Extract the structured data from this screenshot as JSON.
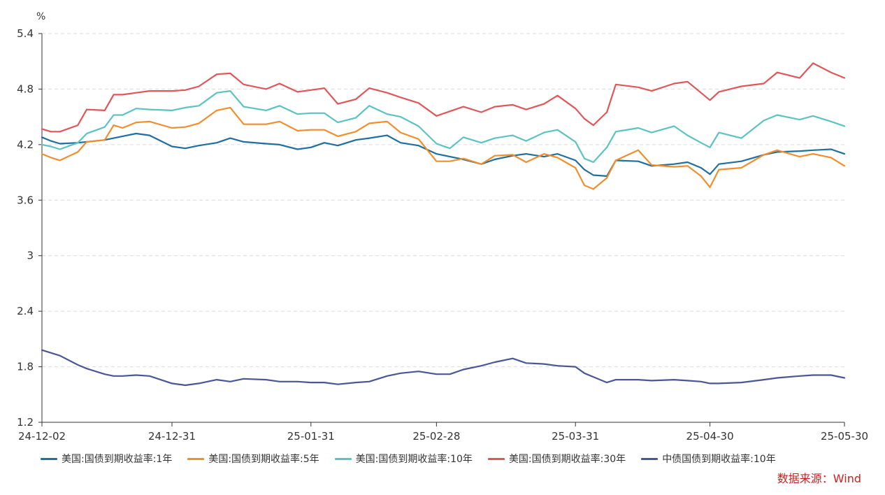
{
  "chart_data": {
    "type": "line",
    "yunit": "%",
    "ylim": [
      1.2,
      5.4
    ],
    "yticks": [
      "1.2",
      "1.8",
      "2.4",
      "3",
      "3.6",
      "4.2",
      "4.8",
      "5.4"
    ],
    "xticks": [
      "24-12-02",
      "24-12-31",
      "25-01-31",
      "25-02-28",
      "25-03-31",
      "25-04-30",
      "25-05-30"
    ],
    "grid": "horizontal-dashed",
    "legend_position": "bottom",
    "series": [
      {
        "name": "美国:国债到期收益率:1年",
        "color": "#1f6f9f",
        "points": [
          [
            "24-12-02",
            4.28
          ],
          [
            "24-12-04",
            4.24
          ],
          [
            "24-12-06",
            4.21
          ],
          [
            "24-12-10",
            4.22
          ],
          [
            "24-12-12",
            4.23
          ],
          [
            "24-12-16",
            4.25
          ],
          [
            "24-12-18",
            4.27
          ],
          [
            "24-12-20",
            4.29
          ],
          [
            "24-12-23",
            4.32
          ],
          [
            "24-12-26",
            4.3
          ],
          [
            "24-12-31",
            4.18
          ],
          [
            "25-01-03",
            4.16
          ],
          [
            "25-01-06",
            4.19
          ],
          [
            "25-01-10",
            4.22
          ],
          [
            "25-01-13",
            4.27
          ],
          [
            "25-01-16",
            4.23
          ],
          [
            "25-01-21",
            4.21
          ],
          [
            "25-01-24",
            4.2
          ],
          [
            "25-01-28",
            4.15
          ],
          [
            "25-01-31",
            4.17
          ],
          [
            "25-02-03",
            4.22
          ],
          [
            "25-02-06",
            4.19
          ],
          [
            "25-02-10",
            4.25
          ],
          [
            "25-02-13",
            4.27
          ],
          [
            "25-02-17",
            4.3
          ],
          [
            "25-02-20",
            4.22
          ],
          [
            "25-02-24",
            4.19
          ],
          [
            "25-02-28",
            4.1
          ],
          [
            "25-03-03",
            4.07
          ],
          [
            "25-03-06",
            4.04
          ],
          [
            "25-03-10",
            3.99
          ],
          [
            "25-03-13",
            4.04
          ],
          [
            "25-03-17",
            4.08
          ],
          [
            "25-03-20",
            4.1
          ],
          [
            "25-03-24",
            4.07
          ],
          [
            "25-03-27",
            4.1
          ],
          [
            "25-03-31",
            4.03
          ],
          [
            "25-04-02",
            3.93
          ],
          [
            "25-04-04",
            3.87
          ],
          [
            "25-04-07",
            3.86
          ],
          [
            "25-04-09",
            4.03
          ],
          [
            "25-04-14",
            4.02
          ],
          [
            "25-04-17",
            3.97
          ],
          [
            "25-04-22",
            3.99
          ],
          [
            "25-04-25",
            4.01
          ],
          [
            "25-04-28",
            3.95
          ],
          [
            "25-04-30",
            3.88
          ],
          [
            "25-05-02",
            3.99
          ],
          [
            "25-05-07",
            4.02
          ],
          [
            "25-05-12",
            4.09
          ],
          [
            "25-05-15",
            4.12
          ],
          [
            "25-05-20",
            4.13
          ],
          [
            "25-05-23",
            4.14
          ],
          [
            "25-05-27",
            4.15
          ],
          [
            "25-05-30",
            4.1
          ]
        ]
      },
      {
        "name": "美国:国债到期收益率:5年",
        "color": "#f28e2b",
        "points": [
          [
            "24-12-02",
            4.1
          ],
          [
            "24-12-04",
            4.06
          ],
          [
            "24-12-06",
            4.03
          ],
          [
            "24-12-10",
            4.12
          ],
          [
            "24-12-12",
            4.23
          ],
          [
            "24-12-16",
            4.25
          ],
          [
            "24-12-18",
            4.41
          ],
          [
            "24-12-20",
            4.38
          ],
          [
            "24-12-23",
            4.44
          ],
          [
            "24-12-26",
            4.45
          ],
          [
            "24-12-31",
            4.38
          ],
          [
            "25-01-03",
            4.39
          ],
          [
            "25-01-06",
            4.43
          ],
          [
            "25-01-10",
            4.57
          ],
          [
            "25-01-13",
            4.6
          ],
          [
            "25-01-16",
            4.42
          ],
          [
            "25-01-21",
            4.42
          ],
          [
            "25-01-24",
            4.45
          ],
          [
            "25-01-28",
            4.35
          ],
          [
            "25-01-31",
            4.36
          ],
          [
            "25-02-03",
            4.36
          ],
          [
            "25-02-06",
            4.29
          ],
          [
            "25-02-10",
            4.34
          ],
          [
            "25-02-13",
            4.43
          ],
          [
            "25-02-17",
            4.45
          ],
          [
            "25-02-20",
            4.33
          ],
          [
            "25-02-24",
            4.26
          ],
          [
            "25-02-28",
            4.02
          ],
          [
            "25-03-03",
            4.02
          ],
          [
            "25-03-06",
            4.05
          ],
          [
            "25-03-10",
            3.99
          ],
          [
            "25-03-13",
            4.08
          ],
          [
            "25-03-17",
            4.09
          ],
          [
            "25-03-20",
            4.01
          ],
          [
            "25-03-24",
            4.1
          ],
          [
            "25-03-27",
            4.06
          ],
          [
            "25-03-31",
            3.95
          ],
          [
            "25-04-02",
            3.76
          ],
          [
            "25-04-04",
            3.72
          ],
          [
            "25-04-07",
            3.84
          ],
          [
            "25-04-09",
            4.03
          ],
          [
            "25-04-14",
            4.14
          ],
          [
            "25-04-17",
            3.98
          ],
          [
            "25-04-22",
            3.96
          ],
          [
            "25-04-25",
            3.97
          ],
          [
            "25-04-28",
            3.86
          ],
          [
            "25-04-30",
            3.74
          ],
          [
            "25-05-02",
            3.93
          ],
          [
            "25-05-07",
            3.95
          ],
          [
            "25-05-12",
            4.09
          ],
          [
            "25-05-15",
            4.14
          ],
          [
            "25-05-20",
            4.07
          ],
          [
            "25-05-23",
            4.1
          ],
          [
            "25-05-27",
            4.06
          ],
          [
            "25-05-30",
            3.97
          ]
        ]
      },
      {
        "name": "美国:国债到期收益率:10年",
        "color": "#5cc3c3",
        "points": [
          [
            "24-12-02",
            4.2
          ],
          [
            "24-12-04",
            4.18
          ],
          [
            "24-12-06",
            4.15
          ],
          [
            "24-12-10",
            4.22
          ],
          [
            "24-12-12",
            4.32
          ],
          [
            "24-12-16",
            4.39
          ],
          [
            "24-12-18",
            4.52
          ],
          [
            "24-12-20",
            4.52
          ],
          [
            "24-12-23",
            4.59
          ],
          [
            "24-12-26",
            4.58
          ],
          [
            "24-12-31",
            4.57
          ],
          [
            "25-01-03",
            4.6
          ],
          [
            "25-01-06",
            4.62
          ],
          [
            "25-01-10",
            4.76
          ],
          [
            "25-01-13",
            4.78
          ],
          [
            "25-01-16",
            4.61
          ],
          [
            "25-01-21",
            4.57
          ],
          [
            "25-01-24",
            4.62
          ],
          [
            "25-01-28",
            4.53
          ],
          [
            "25-01-31",
            4.54
          ],
          [
            "25-02-03",
            4.54
          ],
          [
            "25-02-06",
            4.44
          ],
          [
            "25-02-10",
            4.49
          ],
          [
            "25-02-13",
            4.62
          ],
          [
            "25-02-17",
            4.53
          ],
          [
            "25-02-20",
            4.5
          ],
          [
            "25-02-24",
            4.4
          ],
          [
            "25-02-28",
            4.21
          ],
          [
            "25-03-03",
            4.16
          ],
          [
            "25-03-06",
            4.28
          ],
          [
            "25-03-10",
            4.22
          ],
          [
            "25-03-13",
            4.27
          ],
          [
            "25-03-17",
            4.3
          ],
          [
            "25-03-20",
            4.24
          ],
          [
            "25-03-24",
            4.33
          ],
          [
            "25-03-27",
            4.36
          ],
          [
            "25-03-31",
            4.23
          ],
          [
            "25-04-02",
            4.05
          ],
          [
            "25-04-04",
            4.01
          ],
          [
            "25-04-07",
            4.17
          ],
          [
            "25-04-09",
            4.34
          ],
          [
            "25-04-14",
            4.38
          ],
          [
            "25-04-17",
            4.33
          ],
          [
            "25-04-22",
            4.4
          ],
          [
            "25-04-25",
            4.3
          ],
          [
            "25-04-28",
            4.22
          ],
          [
            "25-04-30",
            4.17
          ],
          [
            "25-05-02",
            4.33
          ],
          [
            "25-05-07",
            4.27
          ],
          [
            "25-05-12",
            4.46
          ],
          [
            "25-05-15",
            4.52
          ],
          [
            "25-05-20",
            4.47
          ],
          [
            "25-05-23",
            4.51
          ],
          [
            "25-05-27",
            4.45
          ],
          [
            "25-05-30",
            4.4
          ]
        ]
      },
      {
        "name": "美国:国债到期收益率:30年",
        "color": "#e15759",
        "points": [
          [
            "24-12-02",
            4.37
          ],
          [
            "24-12-04",
            4.34
          ],
          [
            "24-12-06",
            4.34
          ],
          [
            "24-12-10",
            4.41
          ],
          [
            "24-12-12",
            4.58
          ],
          [
            "24-12-16",
            4.57
          ],
          [
            "24-12-18",
            4.74
          ],
          [
            "24-12-20",
            4.74
          ],
          [
            "24-12-23",
            4.76
          ],
          [
            "24-12-26",
            4.78
          ],
          [
            "24-12-31",
            4.78
          ],
          [
            "25-01-03",
            4.79
          ],
          [
            "25-01-06",
            4.83
          ],
          [
            "25-01-10",
            4.96
          ],
          [
            "25-01-13",
            4.97
          ],
          [
            "25-01-16",
            4.85
          ],
          [
            "25-01-21",
            4.8
          ],
          [
            "25-01-24",
            4.86
          ],
          [
            "25-01-28",
            4.77
          ],
          [
            "25-01-31",
            4.79
          ],
          [
            "25-02-03",
            4.81
          ],
          [
            "25-02-06",
            4.64
          ],
          [
            "25-02-10",
            4.69
          ],
          [
            "25-02-13",
            4.81
          ],
          [
            "25-02-17",
            4.76
          ],
          [
            "25-02-20",
            4.71
          ],
          [
            "25-02-24",
            4.65
          ],
          [
            "25-02-28",
            4.51
          ],
          [
            "25-03-03",
            4.56
          ],
          [
            "25-03-06",
            4.61
          ],
          [
            "25-03-10",
            4.55
          ],
          [
            "25-03-13",
            4.61
          ],
          [
            "25-03-17",
            4.63
          ],
          [
            "25-03-20",
            4.58
          ],
          [
            "25-03-24",
            4.64
          ],
          [
            "25-03-27",
            4.73
          ],
          [
            "25-03-31",
            4.59
          ],
          [
            "25-04-02",
            4.48
          ],
          [
            "25-04-04",
            4.41
          ],
          [
            "25-04-07",
            4.55
          ],
          [
            "25-04-09",
            4.85
          ],
          [
            "25-04-14",
            4.82
          ],
          [
            "25-04-17",
            4.78
          ],
          [
            "25-04-22",
            4.86
          ],
          [
            "25-04-25",
            4.88
          ],
          [
            "25-04-28",
            4.76
          ],
          [
            "25-04-30",
            4.68
          ],
          [
            "25-05-02",
            4.77
          ],
          [
            "25-05-07",
            4.83
          ],
          [
            "25-05-12",
            4.86
          ],
          [
            "25-05-15",
            4.98
          ],
          [
            "25-05-20",
            4.92
          ],
          [
            "25-05-23",
            5.08
          ],
          [
            "25-05-27",
            4.98
          ],
          [
            "25-05-30",
            4.92
          ]
        ]
      },
      {
        "name": "中债国债到期收益率:10年",
        "color": "#4a5695",
        "points": [
          [
            "24-12-02",
            1.98
          ],
          [
            "24-12-04",
            1.95
          ],
          [
            "24-12-06",
            1.92
          ],
          [
            "24-12-10",
            1.82
          ],
          [
            "24-12-12",
            1.78
          ],
          [
            "24-12-16",
            1.72
          ],
          [
            "24-12-18",
            1.7
          ],
          [
            "24-12-20",
            1.7
          ],
          [
            "24-12-23",
            1.71
          ],
          [
            "24-12-26",
            1.7
          ],
          [
            "24-12-31",
            1.62
          ],
          [
            "25-01-03",
            1.6
          ],
          [
            "25-01-06",
            1.62
          ],
          [
            "25-01-10",
            1.66
          ],
          [
            "25-01-13",
            1.64
          ],
          [
            "25-01-16",
            1.67
          ],
          [
            "25-01-21",
            1.66
          ],
          [
            "25-01-24",
            1.64
          ],
          [
            "25-01-28",
            1.64
          ],
          [
            "25-01-31",
            1.63
          ],
          [
            "25-02-03",
            1.63
          ],
          [
            "25-02-06",
            1.61
          ],
          [
            "25-02-10",
            1.63
          ],
          [
            "25-02-13",
            1.64
          ],
          [
            "25-02-17",
            1.7
          ],
          [
            "25-02-20",
            1.73
          ],
          [
            "25-02-24",
            1.75
          ],
          [
            "25-02-28",
            1.72
          ],
          [
            "25-03-03",
            1.72
          ],
          [
            "25-03-06",
            1.77
          ],
          [
            "25-03-10",
            1.81
          ],
          [
            "25-03-13",
            1.85
          ],
          [
            "25-03-17",
            1.89
          ],
          [
            "25-03-20",
            1.84
          ],
          [
            "25-03-24",
            1.83
          ],
          [
            "25-03-27",
            1.81
          ],
          [
            "25-03-31",
            1.8
          ],
          [
            "25-04-02",
            1.73
          ],
          [
            "25-04-04",
            1.69
          ],
          [
            "25-04-07",
            1.63
          ],
          [
            "25-04-09",
            1.66
          ],
          [
            "25-04-14",
            1.66
          ],
          [
            "25-04-17",
            1.65
          ],
          [
            "25-04-22",
            1.66
          ],
          [
            "25-04-25",
            1.65
          ],
          [
            "25-04-28",
            1.64
          ],
          [
            "25-04-30",
            1.62
          ],
          [
            "25-05-02",
            1.62
          ],
          [
            "25-05-07",
            1.63
          ],
          [
            "25-05-12",
            1.66
          ],
          [
            "25-05-15",
            1.68
          ],
          [
            "25-05-20",
            1.7
          ],
          [
            "25-05-23",
            1.71
          ],
          [
            "25-05-27",
            1.71
          ],
          [
            "25-05-30",
            1.68
          ]
        ]
      }
    ]
  },
  "source_label": "数据来源：Wind"
}
